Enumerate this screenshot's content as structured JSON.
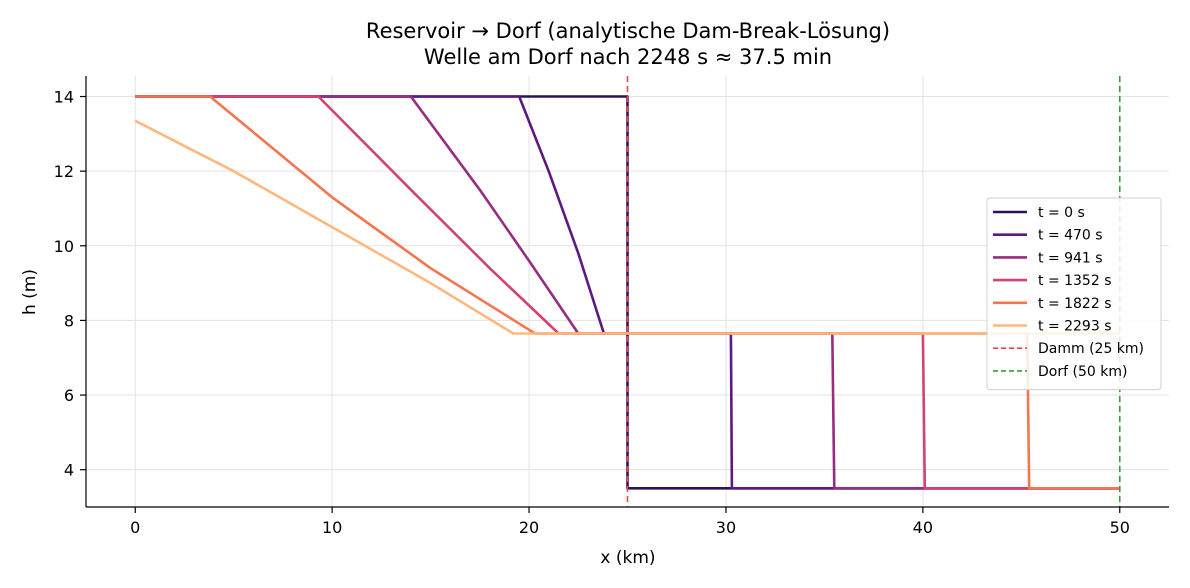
{
  "chart_data": {
    "type": "line",
    "title": "Reservoir → Dorf (analytische Dam-Break-Lösung)",
    "subtitle": "Welle am Dorf nach 2248 s ≈ 37.5 min",
    "xlabel": "x (km)",
    "ylabel": "h (m)",
    "xlim": [
      -2.5,
      52.5
    ],
    "ylim": [
      3.0,
      14.55
    ],
    "xticks": [
      0,
      10,
      20,
      30,
      40,
      50
    ],
    "yticks": [
      4,
      6,
      8,
      10,
      12,
      14
    ],
    "grid": true,
    "legend_position": "right",
    "series": [
      {
        "name": "t = 0 s",
        "color": "#2c115f",
        "x": [
          0,
          25,
          25,
          50
        ],
        "y": [
          14,
          14,
          3.5,
          3.5
        ]
      },
      {
        "name": "t = 470 s",
        "color": "#5f187f",
        "x": [
          0,
          19.5,
          21.0,
          22.5,
          23.8,
          25,
          27,
          30.25,
          30.3,
          50
        ],
        "y": [
          14,
          14,
          12.0,
          9.8,
          7.65,
          7.65,
          7.65,
          7.65,
          3.5,
          3.5
        ]
      },
      {
        "name": "t = 941 s",
        "color": "#982d80",
        "x": [
          0,
          14.0,
          17.5,
          20.0,
          22.5,
          25,
          30,
          35.4,
          35.5,
          50
        ],
        "y": [
          14,
          14,
          11.5,
          9.6,
          7.65,
          7.65,
          7.65,
          7.65,
          3.5,
          3.5
        ]
      },
      {
        "name": "t = 1352 s",
        "color": "#d3436e",
        "x": [
          0,
          9.3,
          14.0,
          18.0,
          21.5,
          25,
          32,
          40.0,
          40.1,
          50
        ],
        "y": [
          14,
          14,
          11.5,
          9.4,
          7.65,
          7.65,
          7.65,
          7.65,
          3.5,
          3.5
        ]
      },
      {
        "name": "t = 1822 s",
        "color": "#f37651",
        "x": [
          0,
          3.8,
          10.0,
          15.0,
          20.3,
          25,
          35,
          45.3,
          45.4,
          50
        ],
        "y": [
          14,
          14,
          11.3,
          9.4,
          7.65,
          7.65,
          7.65,
          7.65,
          3.5,
          3.5
        ]
      },
      {
        "name": "t = 2293 s",
        "color": "#feb87f",
        "x": [
          0,
          5,
          10,
          15,
          19.2,
          25,
          35,
          50
        ],
        "y": [
          13.35,
          12.0,
          10.5,
          9.0,
          7.65,
          7.65,
          7.65,
          7.65
        ]
      }
    ],
    "vlines": [
      {
        "name": "Damm (25 km)",
        "x": 25,
        "color": "#e8474b"
      },
      {
        "name": "Dorf (50 km)",
        "x": 50,
        "color": "#3a9a3e"
      }
    ]
  }
}
